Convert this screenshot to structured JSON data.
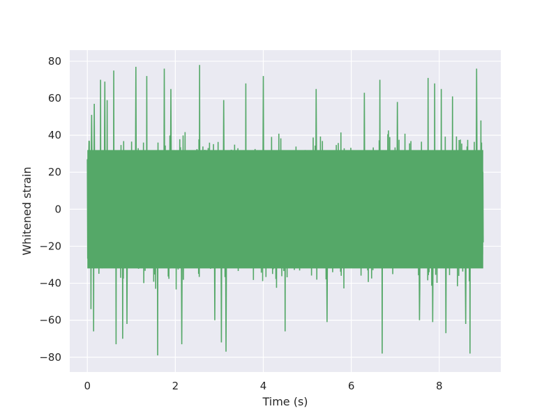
{
  "chart_data": {
    "type": "line",
    "title": "",
    "xlabel": "Time (s)",
    "ylabel": "Whitened strain",
    "xlim": [
      -0.4,
      9.4
    ],
    "ylim": [
      -88,
      86
    ],
    "xticks": [
      0,
      2,
      4,
      6,
      8
    ],
    "yticks": [
      -80,
      -60,
      -40,
      -20,
      0,
      20,
      40,
      60,
      80
    ],
    "xtick_labels": [
      "0",
      "2",
      "4",
      "6",
      "8"
    ],
    "ytick_labels": [
      "−80",
      "−60",
      "−40",
      "−20",
      "0",
      "20",
      "40",
      "60",
      "80"
    ],
    "grid": true,
    "background_color": "#eaeaf2",
    "series": [
      {
        "color": "#55a868",
        "x_range": [
          0,
          9
        ],
        "sample_count": 1200,
        "envelope": {
          "typical_abs_max": 45,
          "dense_band": 32
        },
        "peaks": [
          {
            "x": 0.04,
            "y": 37
          },
          {
            "x": 0.08,
            "y": -54
          },
          {
            "x": 0.1,
            "y": 51
          },
          {
            "x": 0.14,
            "y": -66
          },
          {
            "x": 0.16,
            "y": 57
          },
          {
            "x": 0.3,
            "y": 70
          },
          {
            "x": 0.4,
            "y": 69
          },
          {
            "x": 0.45,
            "y": 59
          },
          {
            "x": 0.6,
            "y": 75
          },
          {
            "x": 0.65,
            "y": -73
          },
          {
            "x": 0.8,
            "y": -70
          },
          {
            "x": 0.9,
            "y": -62
          },
          {
            "x": 1.1,
            "y": 77
          },
          {
            "x": 1.35,
            "y": 72
          },
          {
            "x": 1.6,
            "y": -79
          },
          {
            "x": 1.75,
            "y": 76
          },
          {
            "x": 1.9,
            "y": 65
          },
          {
            "x": 2.15,
            "y": -73
          },
          {
            "x": 2.55,
            "y": 78
          },
          {
            "x": 2.9,
            "y": -60
          },
          {
            "x": 3.05,
            "y": -72
          },
          {
            "x": 3.1,
            "y": 59
          },
          {
            "x": 3.15,
            "y": -77
          },
          {
            "x": 3.6,
            "y": 68
          },
          {
            "x": 4.0,
            "y": 72
          },
          {
            "x": 4.5,
            "y": -66
          },
          {
            "x": 5.2,
            "y": 65
          },
          {
            "x": 5.45,
            "y": -61
          },
          {
            "x": 6.3,
            "y": 63
          },
          {
            "x": 6.65,
            "y": 70
          },
          {
            "x": 6.7,
            "y": -78
          },
          {
            "x": 7.05,
            "y": 58
          },
          {
            "x": 7.55,
            "y": -60
          },
          {
            "x": 7.75,
            "y": 71
          },
          {
            "x": 7.85,
            "y": -61
          },
          {
            "x": 7.9,
            "y": 68
          },
          {
            "x": 8.05,
            "y": 65
          },
          {
            "x": 8.15,
            "y": -67
          },
          {
            "x": 8.3,
            "y": 61
          },
          {
            "x": 8.6,
            "y": -62
          },
          {
            "x": 8.7,
            "y": -78
          },
          {
            "x": 8.85,
            "y": 76
          },
          {
            "x": 8.95,
            "y": 48
          }
        ]
      }
    ]
  }
}
